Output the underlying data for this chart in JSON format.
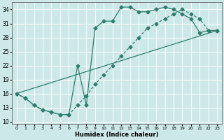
{
  "xlabel": "Humidex (Indice chaleur)",
  "background_color": "#cce8e8",
  "grid_color": "#aacccc",
  "line_color": "#2e7d6e",
  "xlim": [
    -0.5,
    23.5
  ],
  "ylim": [
    9.5,
    35.5
  ],
  "xticks": [
    0,
    1,
    2,
    3,
    4,
    5,
    6,
    7,
    8,
    9,
    10,
    11,
    12,
    13,
    14,
    15,
    16,
    17,
    18,
    19,
    20,
    21,
    22,
    23
  ],
  "yticks": [
    10,
    13,
    16,
    19,
    22,
    25,
    28,
    31,
    34
  ],
  "curve1_x": [
    0,
    1,
    2,
    3,
    4,
    5,
    6,
    7,
    8,
    9,
    10,
    11,
    12,
    13,
    14,
    15,
    16,
    17,
    18,
    19,
    20,
    21,
    22,
    23
  ],
  "curve1_y": [
    16,
    15,
    13.5,
    12.5,
    12,
    11.5,
    11.5,
    13.5,
    15.5,
    18,
    20,
    22,
    24,
    26,
    28,
    30,
    31,
    32,
    33,
    34,
    33,
    32,
    29.5,
    29.5
  ],
  "curve2_x": [
    0,
    1,
    2,
    3,
    4,
    5,
    6,
    7,
    8,
    9,
    10,
    11,
    12,
    13,
    14,
    15,
    16,
    17,
    18,
    19,
    20,
    21,
    22,
    23
  ],
  "curve2_y": [
    16,
    15,
    13.5,
    12.5,
    12,
    11.5,
    11.5,
    22,
    13.5,
    30,
    31.5,
    31.5,
    34.5,
    34.5,
    33.5,
    33.5,
    34,
    34.5,
    34,
    33,
    32,
    29,
    29.5,
    29.5
  ],
  "line_x": [
    0,
    23
  ],
  "line_y": [
    16,
    29.5
  ],
  "marker_size": 2.5,
  "line_width": 0.9
}
